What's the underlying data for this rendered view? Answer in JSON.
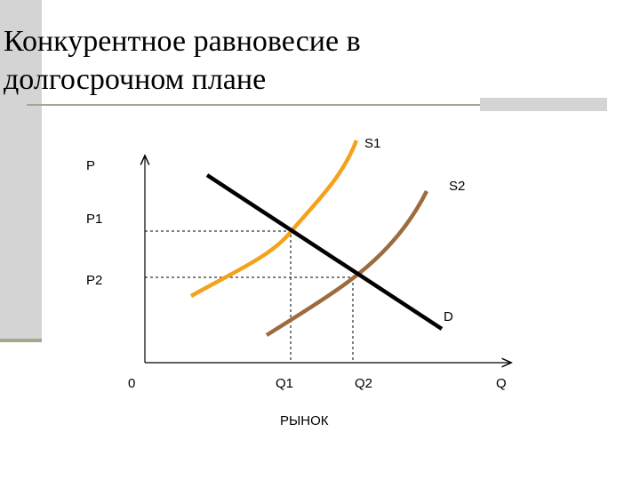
{
  "header": {
    "title_lines": [
      "Конкурентное равновесие в",
      "долгосрочном плане"
    ]
  },
  "diagram": {
    "axis_labels": {
      "price": "P",
      "quantity": "Q",
      "origin": "0"
    },
    "price_levels": [
      "P1",
      "P2"
    ],
    "quantity_levels": [
      "Q1",
      "Q2"
    ],
    "curves": {
      "supply_1": "S1",
      "supply_2": "S2",
      "demand": "D"
    },
    "caption": "РЫНОК"
  }
}
